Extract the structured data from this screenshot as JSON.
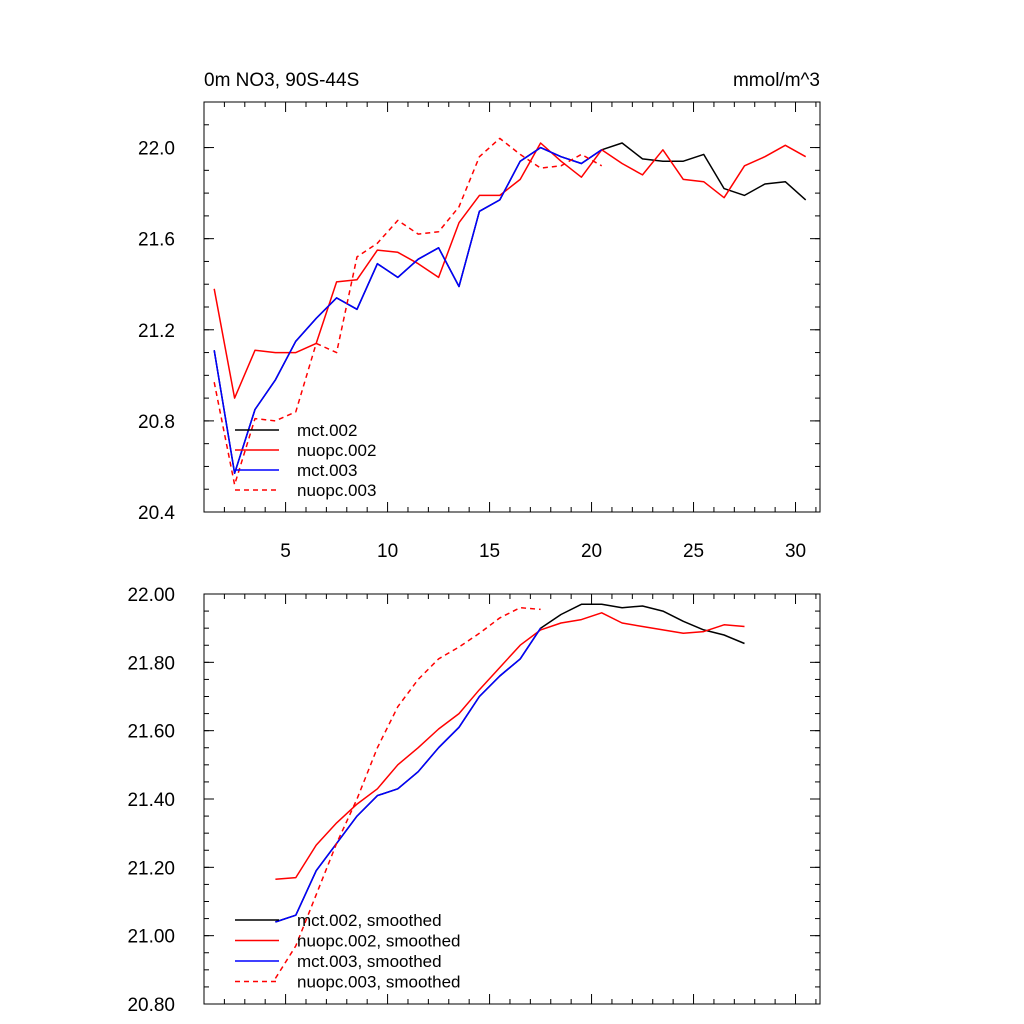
{
  "chart_data": [
    {
      "type": "line",
      "title": "0m NO3, 90S-44S",
      "units": "mmol/m^3",
      "xlabel": "",
      "ylabel": "",
      "xlim": [
        1.0,
        31.2
      ],
      "ylim": [
        20.4,
        22.2
      ],
      "xticks": [
        5,
        10,
        15,
        20,
        25,
        30
      ],
      "xtick_labels": [
        "5",
        "10",
        "15",
        "20",
        "25",
        "30"
      ],
      "yticks": [
        20.4,
        20.8,
        21.2,
        21.6,
        22.0
      ],
      "ytick_labels": [
        "20.4",
        "20.8",
        "21.2",
        "21.6",
        "22.0"
      ],
      "legend": "bottom-left",
      "series": [
        {
          "name": "mct.002",
          "color": "#000000",
          "dash": "solid",
          "x": [
            1.5,
            2.5,
            3.5,
            4.5,
            5.5,
            6.5,
            7.5,
            8.5,
            9.5,
            10.5,
            11.5,
            12.5,
            13.5,
            14.5,
            15.5,
            16.5,
            17.5,
            18.5,
            19.5,
            20.5,
            21.5,
            22.5,
            23.5,
            24.5,
            25.5,
            26.5,
            27.5,
            28.5,
            29.5,
            30.5
          ],
          "values": [
            21.11,
            20.57,
            20.85,
            20.98,
            21.15,
            21.25,
            21.34,
            21.29,
            21.49,
            21.43,
            21.51,
            21.56,
            21.39,
            21.72,
            21.77,
            21.94,
            22.0,
            21.96,
            21.93,
            21.99,
            22.02,
            21.95,
            21.94,
            21.94,
            21.97,
            21.82,
            21.79,
            21.84,
            21.85,
            21.77
          ]
        },
        {
          "name": "nuopc.002",
          "color": "#ff0000",
          "dash": "solid",
          "x": [
            1.5,
            2.5,
            3.5,
            4.5,
            5.5,
            6.5,
            7.5,
            8.5,
            9.5,
            10.5,
            11.5,
            12.5,
            13.5,
            14.5,
            15.5,
            16.5,
            17.5,
            18.5,
            19.5,
            20.5,
            21.5,
            22.5,
            23.5,
            24.5,
            25.5,
            26.5,
            27.5,
            28.5,
            29.5,
            30.5
          ],
          "values": [
            21.38,
            20.9,
            21.11,
            21.1,
            21.1,
            21.14,
            21.41,
            21.42,
            21.55,
            21.54,
            21.49,
            21.43,
            21.67,
            21.79,
            21.79,
            21.86,
            22.02,
            21.94,
            21.87,
            21.99,
            21.93,
            21.88,
            21.99,
            21.86,
            21.85,
            21.78,
            21.92,
            21.96,
            22.01,
            21.96
          ]
        },
        {
          "name": "mct.003",
          "color": "#0000ff",
          "dash": "solid",
          "x": [
            1.5,
            2.5,
            3.5,
            4.5,
            5.5,
            6.5,
            7.5,
            8.5,
            9.5,
            10.5,
            11.5,
            12.5,
            13.5,
            14.5,
            15.5,
            16.5,
            17.5,
            18.5,
            19.5,
            20.5
          ],
          "values": [
            21.11,
            20.57,
            20.85,
            20.98,
            21.15,
            21.25,
            21.34,
            21.29,
            21.49,
            21.43,
            21.51,
            21.56,
            21.39,
            21.72,
            21.77,
            21.94,
            22.0,
            21.96,
            21.93,
            21.99
          ]
        },
        {
          "name": "nuopc.003",
          "color": "#ff0000",
          "dash": "dashed",
          "x": [
            1.5,
            2.5,
            3.5,
            4.5,
            5.5,
            6.5,
            7.5,
            8.5,
            9.5,
            10.5,
            11.5,
            12.5,
            13.5,
            14.5,
            15.5,
            16.5,
            17.5,
            18.5,
            19.5,
            20.5
          ],
          "values": [
            20.97,
            20.52,
            20.81,
            20.8,
            20.84,
            21.14,
            21.1,
            21.52,
            21.58,
            21.68,
            21.62,
            21.63,
            21.74,
            21.96,
            22.04,
            21.97,
            21.91,
            21.92,
            21.97,
            21.92
          ]
        }
      ]
    },
    {
      "type": "line",
      "title": "",
      "xlabel": "",
      "ylabel": "",
      "xlim": [
        1.0,
        31.2
      ],
      "ylim": [
        20.8,
        22.0
      ],
      "xticks": [
        5,
        10,
        15,
        20,
        25,
        30
      ],
      "yticks": [
        20.8,
        21.0,
        21.2,
        21.4,
        21.6,
        21.8,
        22.0
      ],
      "ytick_labels": [
        "20.80",
        "21.00",
        "21.20",
        "21.40",
        "21.60",
        "21.80",
        "22.00"
      ],
      "legend": "bottom-left",
      "series": [
        {
          "name": "mct.002, smoothed",
          "color": "#000000",
          "dash": "solid",
          "x": [
            4.5,
            5.5,
            6.5,
            7.5,
            8.5,
            9.5,
            10.5,
            11.5,
            12.5,
            13.5,
            14.5,
            15.5,
            16.5,
            17.5,
            18.5,
            19.5,
            20.5,
            21.5,
            22.5,
            23.5,
            24.5,
            25.5,
            26.5,
            27.5
          ],
          "values": [
            21.04,
            21.06,
            21.19,
            21.27,
            21.35,
            21.41,
            21.43,
            21.48,
            21.55,
            21.61,
            21.7,
            21.76,
            21.81,
            21.9,
            21.94,
            21.97,
            21.97,
            21.96,
            21.965,
            21.95,
            21.92,
            21.895,
            21.88,
            21.855
          ]
        },
        {
          "name": "nuopc.002, smoothed",
          "color": "#ff0000",
          "dash": "solid",
          "x": [
            4.5,
            5.5,
            6.5,
            7.5,
            8.5,
            9.5,
            10.5,
            11.5,
            12.5,
            13.5,
            14.5,
            15.5,
            16.5,
            17.5,
            18.5,
            19.5,
            20.5,
            21.5,
            22.5,
            23.5,
            24.5,
            25.5,
            26.5,
            27.5
          ],
          "values": [
            21.165,
            21.17,
            21.265,
            21.33,
            21.385,
            21.43,
            21.5,
            21.55,
            21.605,
            21.65,
            21.72,
            21.785,
            21.85,
            21.895,
            21.915,
            21.925,
            21.945,
            21.915,
            21.905,
            21.895,
            21.885,
            21.89,
            21.91,
            21.905
          ]
        },
        {
          "name": "mct.003, smoothed",
          "color": "#0000ff",
          "dash": "solid",
          "x": [
            4.5,
            5.5,
            6.5,
            7.5,
            8.5,
            9.5,
            10.5,
            11.5,
            12.5,
            13.5,
            14.5,
            15.5,
            16.5,
            17.5
          ],
          "values": [
            21.04,
            21.06,
            21.19,
            21.27,
            21.35,
            21.41,
            21.43,
            21.48,
            21.55,
            21.61,
            21.7,
            21.76,
            21.81,
            21.9
          ]
        },
        {
          "name": "nuopc.003, smoothed",
          "color": "#ff0000",
          "dash": "dashed",
          "x": [
            4.5,
            5.5,
            6.5,
            7.5,
            8.5,
            9.5,
            10.5,
            11.5,
            12.5,
            13.5,
            14.5,
            15.5,
            16.5,
            17.5
          ],
          "values": [
            20.875,
            20.97,
            21.12,
            21.27,
            21.4,
            21.55,
            21.67,
            21.75,
            21.81,
            21.845,
            21.885,
            21.93,
            21.96,
            21.955
          ]
        }
      ]
    }
  ]
}
